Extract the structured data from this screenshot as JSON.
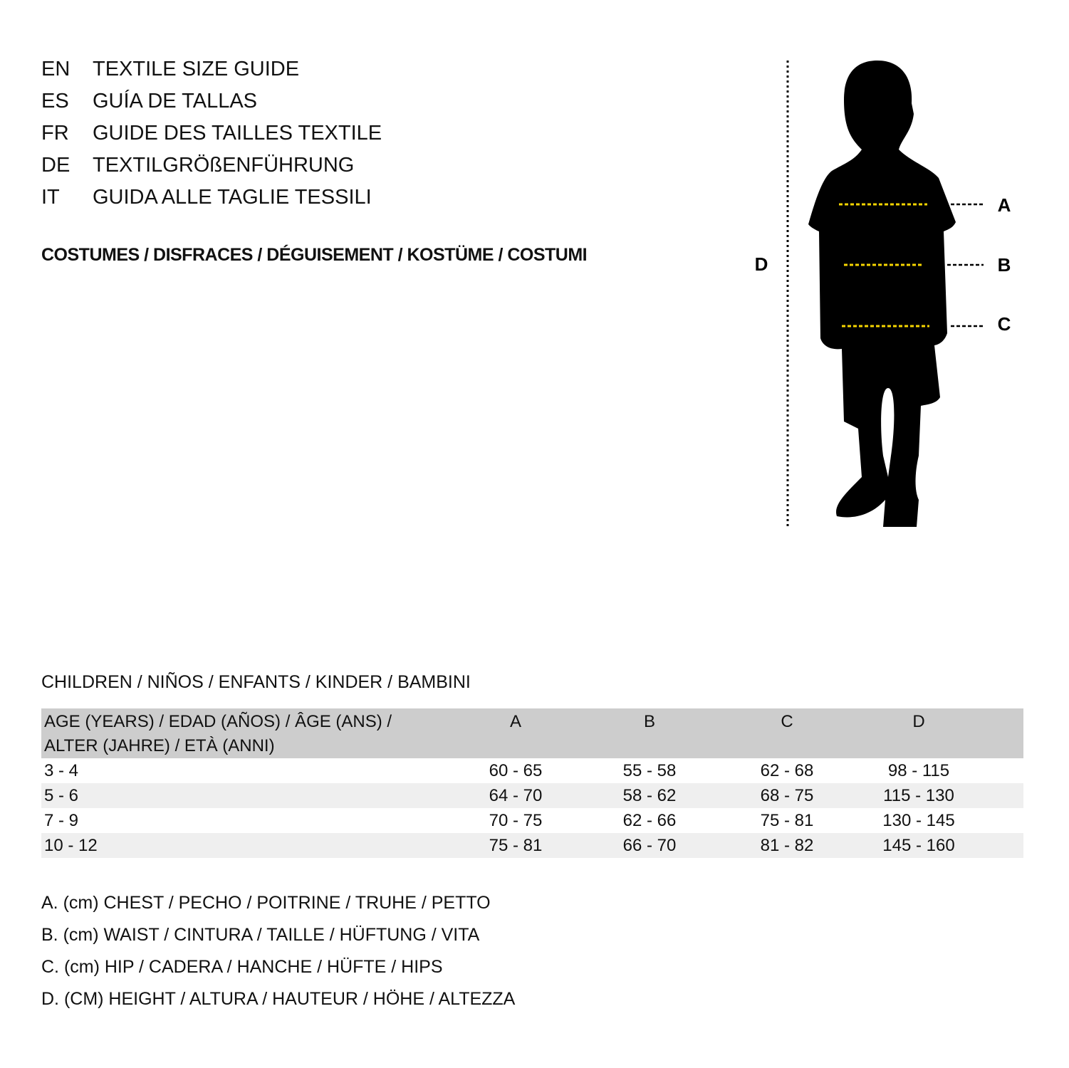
{
  "titles": [
    {
      "code": "EN",
      "text": "TEXTILE SIZE GUIDE"
    },
    {
      "code": "ES",
      "text": "GUÍA DE TALLAS"
    },
    {
      "code": "FR",
      "text": "GUIDE DES TAILLES TEXTILE"
    },
    {
      "code": "DE",
      "text": "TEXTILGRÖßENFÜHRUNG"
    },
    {
      "code": "IT",
      "text": "GUIDA ALLE TAGLIE TESSILI"
    }
  ],
  "subtitle": "COSTUMES / DISFRACES / DÉGUISEMENT / KOSTÜME / COSTUMI",
  "diagram": {
    "labels": {
      "a": "A",
      "b": "B",
      "c": "C",
      "d": "D"
    },
    "colors": {
      "silhouette": "#000000",
      "measure_lines": "#f5d400"
    }
  },
  "section_title": "CHILDREN / NIÑOS / ENFANTS / KINDER / BAMBINI",
  "table": {
    "header": {
      "age_line1": "AGE (YEARS) / EDAD (AÑOS) / ÂGE (ANS) /",
      "age_line2": "ALTER (JAHRE) / ETÀ (ANNI)",
      "a": "A",
      "b": "B",
      "c": "C",
      "d": "D"
    },
    "rows": [
      {
        "age": "3 - 4",
        "a": "60 - 65",
        "b": "55 - 58",
        "c": "62 - 68",
        "d": "98 - 115"
      },
      {
        "age": "5 - 6",
        "a": "64 - 70",
        "b": "58 - 62",
        "c": "68 - 75",
        "d": "115 - 130"
      },
      {
        "age": "7 - 9",
        "a": "70 - 75",
        "b": "62 - 66",
        "c": "75 - 81",
        "d": "130 - 145"
      },
      {
        "age": "10 - 12",
        "a": "75 - 81",
        "b": "66 - 70",
        "c": "81 - 82",
        "d": "145 - 160"
      }
    ]
  },
  "legend": [
    "A. (cm) CHEST / PECHO / POITRINE / TRUHE / PETTO",
    "B. (cm) WAIST / CINTURA / TAILLE / HÜFTUNG / VITA",
    "C. (cm) HIP / CADERA / HANCHE / HÜFTE / HIPS",
    "D. (CM) HEIGHT / ALTURA / HAUTEUR / HÖHE / ALTEZZA"
  ]
}
